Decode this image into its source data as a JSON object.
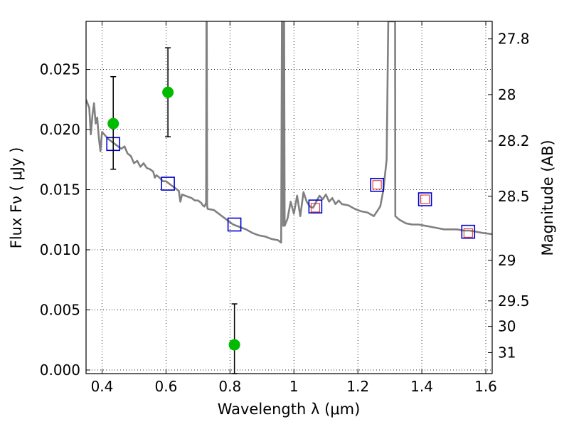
{
  "chart_data": {
    "type": "scatter",
    "xlabel": "Wavelength  λ (μm)",
    "ylabel": "Flux  Fν  ( μJy )",
    "y2label": "Magnitude (AB)",
    "xlim": [
      0.35,
      1.62
    ],
    "ylim": [
      -0.0003,
      0.029
    ],
    "grid": true,
    "x_ticks": [
      0.4,
      0.6,
      0.8,
      1.0,
      1.2,
      1.4,
      1.6
    ],
    "x_tick_labels": [
      "0.4",
      "0.6",
      "0.8",
      "1",
      "1.2",
      "1.4",
      "1.6"
    ],
    "y_ticks": [
      0.0,
      0.005,
      0.01,
      0.015,
      0.02,
      0.025
    ],
    "y_tick_labels": [
      "0.000",
      "0.005",
      "0.010",
      "0.015",
      "0.020",
      "0.025"
    ],
    "y2_ticks": [
      {
        "flux": 0.02754,
        "label": "27.8"
      },
      {
        "flux": 0.02291,
        "label": "28"
      },
      {
        "flux": 0.01905,
        "label": "28.2"
      },
      {
        "flux": 0.01445,
        "label": "28.5"
      },
      {
        "flux": 0.00912,
        "label": "29"
      },
      {
        "flux": 0.00575,
        "label": "29.5"
      },
      {
        "flux": 0.00363,
        "label": "30"
      },
      {
        "flux": 0.00145,
        "label": "31"
      }
    ],
    "series": [
      {
        "kind": "observed",
        "color": "#00bb00",
        "points": [
          {
            "x": 0.435,
            "y": 0.0205,
            "err_lo": 0.0167,
            "err_hi": 0.0244
          },
          {
            "x": 0.606,
            "y": 0.0231,
            "err_lo": 0.0194,
            "err_hi": 0.0268
          },
          {
            "x": 0.814,
            "y": 0.0021,
            "err_lo": -0.0003,
            "err_hi": 0.0055
          }
        ]
      },
      {
        "kind": "model-band",
        "color": "#0000cc",
        "points": [
          {
            "x": 0.435,
            "y": 0.0188
          },
          {
            "x": 0.606,
            "y": 0.0155
          },
          {
            "x": 0.814,
            "y": 0.0121
          },
          {
            "x": 1.067,
            "y": 0.0136
          },
          {
            "x": 1.26,
            "y": 0.0154
          },
          {
            "x": 1.41,
            "y": 0.0142
          },
          {
            "x": 1.545,
            "y": 0.0115
          }
        ]
      },
      {
        "kind": "model-band-inner",
        "color": "#dd2222",
        "points": [
          {
            "x": 1.067,
            "y": 0.0135
          },
          {
            "x": 1.26,
            "y": 0.0154
          },
          {
            "x": 1.41,
            "y": 0.0142
          },
          {
            "x": 1.545,
            "y": 0.0114
          }
        ]
      }
    ],
    "sed_curve": {
      "color": "#808080",
      "points": [
        [
          0.35,
          0.0225
        ],
        [
          0.36,
          0.0218
        ],
        [
          0.365,
          0.0196
        ],
        [
          0.37,
          0.0212
        ],
        [
          0.375,
          0.0222
        ],
        [
          0.38,
          0.0205
        ],
        [
          0.385,
          0.021
        ],
        [
          0.39,
          0.0193
        ],
        [
          0.395,
          0.0182
        ],
        [
          0.4,
          0.0198
        ],
        [
          0.41,
          0.0195
        ],
        [
          0.42,
          0.0192
        ],
        [
          0.43,
          0.019
        ],
        [
          0.44,
          0.0188
        ],
        [
          0.45,
          0.0186
        ],
        [
          0.46,
          0.0184
        ],
        [
          0.47,
          0.0186
        ],
        [
          0.48,
          0.018
        ],
        [
          0.49,
          0.0178
        ],
        [
          0.5,
          0.0172
        ],
        [
          0.51,
          0.0174
        ],
        [
          0.52,
          0.0169
        ],
        [
          0.53,
          0.0172
        ],
        [
          0.54,
          0.0168
        ],
        [
          0.55,
          0.0167
        ],
        [
          0.56,
          0.0165
        ],
        [
          0.565,
          0.016
        ],
        [
          0.57,
          0.0162
        ],
        [
          0.58,
          0.016
        ],
        [
          0.59,
          0.0157
        ],
        [
          0.6,
          0.0157
        ],
        [
          0.61,
          0.0155
        ],
        [
          0.62,
          0.0153
        ],
        [
          0.63,
          0.0151
        ],
        [
          0.64,
          0.0149
        ],
        [
          0.645,
          0.014
        ],
        [
          0.65,
          0.0146
        ],
        [
          0.66,
          0.0145
        ],
        [
          0.67,
          0.0144
        ],
        [
          0.68,
          0.0143
        ],
        [
          0.69,
          0.0141
        ],
        [
          0.7,
          0.0141
        ],
        [
          0.71,
          0.0139
        ],
        [
          0.715,
          0.0137
        ],
        [
          0.72,
          0.0136
        ],
        [
          0.7255,
          0.0139
        ],
        [
          0.7265,
          0.029
        ],
        [
          0.7275,
          0.029
        ],
        [
          0.7285,
          0.0137
        ],
        [
          0.73,
          0.0134
        ],
        [
          0.75,
          0.0133
        ],
        [
          0.77,
          0.0129
        ],
        [
          0.79,
          0.0125
        ],
        [
          0.81,
          0.0121
        ],
        [
          0.83,
          0.0119
        ],
        [
          0.85,
          0.0117
        ],
        [
          0.87,
          0.0114
        ],
        [
          0.89,
          0.0112
        ],
        [
          0.91,
          0.0111
        ],
        [
          0.93,
          0.0109
        ],
        [
          0.95,
          0.0108
        ],
        [
          0.96,
          0.0106
        ],
        [
          0.9625,
          0.029
        ],
        [
          0.9655,
          0.029
        ],
        [
          0.9665,
          0.012
        ],
        [
          0.968,
          0.029
        ],
        [
          0.9695,
          0.029
        ],
        [
          0.971,
          0.012
        ],
        [
          0.98,
          0.0126
        ],
        [
          0.99,
          0.014
        ],
        [
          1.0,
          0.013
        ],
        [
          1.01,
          0.0145
        ],
        [
          1.02,
          0.0128
        ],
        [
          1.03,
          0.0148
        ],
        [
          1.04,
          0.014
        ],
        [
          1.05,
          0.0136
        ],
        [
          1.06,
          0.0135
        ],
        [
          1.07,
          0.014
        ],
        [
          1.08,
          0.0145
        ],
        [
          1.09,
          0.0142
        ],
        [
          1.1,
          0.0146
        ],
        [
          1.11,
          0.014
        ],
        [
          1.12,
          0.0143
        ],
        [
          1.13,
          0.0138
        ],
        [
          1.14,
          0.0141
        ],
        [
          1.15,
          0.0138
        ],
        [
          1.17,
          0.0137
        ],
        [
          1.19,
          0.0134
        ],
        [
          1.21,
          0.0132
        ],
        [
          1.23,
          0.0131
        ],
        [
          1.25,
          0.0128
        ],
        [
          1.27,
          0.0136
        ],
        [
          1.28,
          0.015
        ],
        [
          1.29,
          0.0175
        ],
        [
          1.295,
          0.029
        ],
        [
          1.3165,
          0.029
        ],
        [
          1.317,
          0.0128
        ],
        [
          1.33,
          0.0125
        ],
        [
          1.35,
          0.0122
        ],
        [
          1.37,
          0.0121
        ],
        [
          1.39,
          0.0121
        ],
        [
          1.41,
          0.012
        ],
        [
          1.43,
          0.0119
        ],
        [
          1.45,
          0.0118
        ],
        [
          1.47,
          0.0117
        ],
        [
          1.49,
          0.0117
        ],
        [
          1.51,
          0.0117
        ],
        [
          1.53,
          0.0116
        ],
        [
          1.55,
          0.0116
        ],
        [
          1.57,
          0.0115
        ],
        [
          1.59,
          0.0114
        ],
        [
          1.62,
          0.0113
        ]
      ]
    }
  }
}
